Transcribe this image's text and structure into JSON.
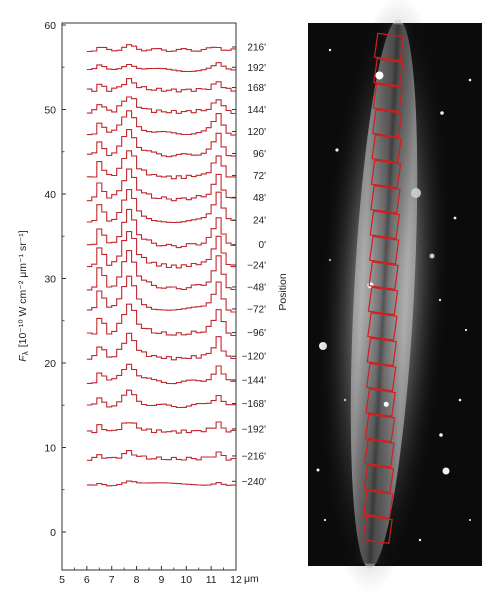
{
  "chart_data": {
    "type": "line",
    "x_unit": "μm",
    "ylabel_var": "F",
    "ylabel_sub": "λ",
    "ylabel_units": "[10⁻¹⁰ W cm⁻² μm⁻¹ sr⁻¹]",
    "position_label": "Position",
    "xlim": [
      5,
      12
    ],
    "ylim": [
      -2,
      60
    ],
    "x_ticks": [
      5,
      6,
      7,
      8,
      9,
      10,
      11,
      12
    ],
    "y_ticks": [
      0,
      10,
      20,
      30,
      40,
      50,
      60
    ],
    "series_color": "#c0282e",
    "position_labels": [
      "216'",
      "192'",
      "168'",
      "144'",
      "120'",
      "96'",
      "72'",
      "48'",
      "24'",
      "0'",
      "−24'",
      "−48'",
      "−72'",
      "−96'",
      "−120'",
      "−144'",
      "−168'",
      "−192'",
      "−216'",
      "−240'"
    ],
    "series_offsets": [
      57,
      54.6,
      52.2,
      49.6,
      47.0,
      44.4,
      41.8,
      39.2,
      36.5,
      33.6,
      31.2,
      28.6,
      26.0,
      23.2,
      20.4,
      17.6,
      14.8,
      11.8,
      8.6,
      5.6
    ],
    "feature_amplitudes": [
      0.5,
      0.9,
      1.3,
      2.0,
      2.8,
      3.2,
      3.4,
      3.6,
      4.2,
      4.4,
      4.5,
      4.6,
      4.3,
      3.8,
      3.0,
      2.4,
      1.8,
      1.3,
      0.9,
      0.5
    ],
    "x": [
      6.0,
      6.2,
      6.4,
      6.6,
      6.8,
      7.0,
      7.2,
      7.4,
      7.6,
      7.8,
      8.0,
      8.2,
      8.4,
      8.6,
      8.8,
      9.0,
      9.2,
      9.4,
      9.6,
      9.8,
      10.0,
      10.2,
      10.4,
      10.6,
      10.8,
      11.0,
      11.2,
      11.4,
      11.6,
      11.8
    ],
    "profile": [
      0.05,
      0.1,
      0.55,
      0.35,
      0.1,
      0.15,
      0.35,
      0.7,
      1.0,
      0.75,
      0.4,
      0.25,
      0.18,
      0.12,
      0.1,
      0.08,
      0.06,
      0.05,
      0.05,
      0.06,
      0.08,
      0.1,
      0.12,
      0.15,
      0.25,
      0.5,
      0.85,
      0.4,
      0.1,
      0.05
    ]
  },
  "image_panel": {
    "description_colors": {
      "background": "#0b0b0b",
      "box": "#d21e1e"
    },
    "box_count": 20
  }
}
